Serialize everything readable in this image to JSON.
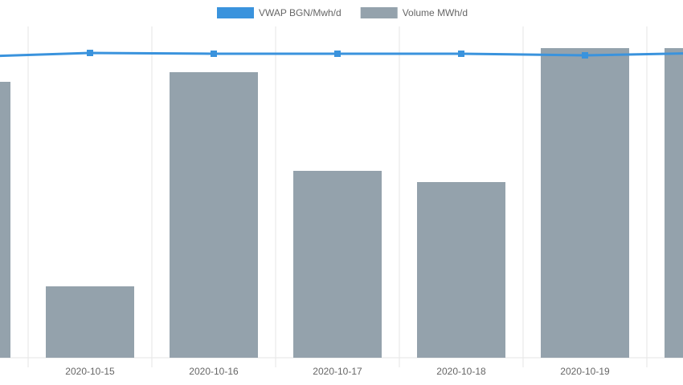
{
  "chart_data": {
    "type": "bar-line",
    "categories": [
      null,
      "2020-10-15",
      "2020-10-16",
      "2020-10-17",
      "2020-10-18",
      "2020-10-19",
      null
    ],
    "series": [
      {
        "name": "VWAP BGN/Mwh/d",
        "type": "line",
        "color": "#3a93dd",
        "values": [
          375,
          380,
          379,
          379,
          379,
          377,
          380
        ]
      },
      {
        "name": "Volume MWh/d",
        "type": "bar",
        "color": "#94a2ac",
        "values": [
          344,
          89,
          356,
          233,
          219,
          386,
          386
        ]
      }
    ],
    "ylim": [
      0,
      413
    ],
    "grid": true,
    "legend": "top"
  }
}
